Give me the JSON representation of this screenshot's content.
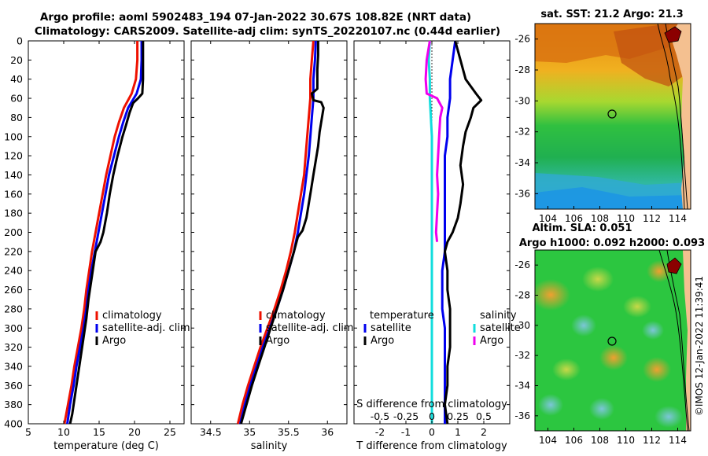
{
  "header": {
    "title_line1": "Argo profile: aoml 5902483_194 07-Jan-2022 30.67S 108.82E (NRT data)",
    "title_line2": "Climatology: CARS2009. Satellite-adj clim: synTS_20220107.nc (0.44d earlier)"
  },
  "footer": {
    "stamp": "©IMOS 12-Jan-2022 11:39:41"
  },
  "colors": {
    "climatology": "#ee1100",
    "satellite": "#0000ee",
    "argo": "#000000",
    "sal_satellite": "#11dddd",
    "sal_argo": "#ee00ee"
  },
  "chart_data": [
    {
      "id": "temperature",
      "type": "line",
      "xlabel": "temperature (deg C)",
      "ylabel": "",
      "xlim": [
        5,
        27
      ],
      "ylim": [
        400,
        0
      ],
      "xticks": [
        "5",
        "10",
        "15",
        "20",
        "25"
      ],
      "yticks": [
        "0",
        "20",
        "40",
        "60",
        "80",
        "100",
        "120",
        "140",
        "160",
        "180",
        "200",
        "220",
        "240",
        "260",
        "280",
        "300",
        "320",
        "340",
        "360",
        "380",
        "400"
      ],
      "legend": [
        "climatology",
        "satellite-adj. clim",
        "Argo"
      ],
      "series": [
        {
          "name": "climatology",
          "color": "#ee1100",
          "points": [
            [
              20.4,
              0
            ],
            [
              20.4,
              20
            ],
            [
              20.2,
              40
            ],
            [
              19.6,
              55
            ],
            [
              18.5,
              70
            ],
            [
              17.8,
              85
            ],
            [
              17.2,
              100
            ],
            [
              16.6,
              120
            ],
            [
              16.0,
              140
            ],
            [
              15.5,
              160
            ],
            [
              15.0,
              180
            ],
            [
              14.5,
              200
            ],
            [
              14.0,
              220
            ],
            [
              13.6,
              240
            ],
            [
              13.2,
              260
            ],
            [
              12.9,
              280
            ],
            [
              12.5,
              300
            ],
            [
              12.0,
              320
            ],
            [
              11.5,
              340
            ],
            [
              11.1,
              360
            ],
            [
              10.6,
              380
            ],
            [
              10.1,
              400
            ]
          ]
        },
        {
          "name": "satellite-adj. clim",
          "color": "#0000ee",
          "points": [
            [
              21.0,
              0
            ],
            [
              21.0,
              20
            ],
            [
              20.9,
              40
            ],
            [
              20.3,
              55
            ],
            [
              19.1,
              70
            ],
            [
              18.4,
              85
            ],
            [
              17.8,
              100
            ],
            [
              17.1,
              120
            ],
            [
              16.4,
              140
            ],
            [
              15.9,
              160
            ],
            [
              15.4,
              180
            ],
            [
              14.9,
              200
            ],
            [
              14.4,
              220
            ],
            [
              13.9,
              240
            ],
            [
              13.5,
              260
            ],
            [
              13.2,
              280
            ],
            [
              12.8,
              300
            ],
            [
              12.3,
              320
            ],
            [
              11.8,
              340
            ],
            [
              11.4,
              360
            ],
            [
              10.9,
              380
            ],
            [
              10.5,
              400
            ]
          ]
        },
        {
          "name": "Argo",
          "color": "#000000",
          "points": [
            [
              21.2,
              0
            ],
            [
              21.2,
              20
            ],
            [
              21.2,
              40
            ],
            [
              21.1,
              55
            ],
            [
              20.5,
              60
            ],
            [
              19.8,
              65
            ],
            [
              19.3,
              75
            ],
            [
              18.8,
              88
            ],
            [
              18.3,
              100
            ],
            [
              17.6,
              120
            ],
            [
              17.0,
              140
            ],
            [
              16.5,
              160
            ],
            [
              16.1,
              180
            ],
            [
              15.6,
              200
            ],
            [
              15.2,
              210
            ],
            [
              14.5,
              220
            ],
            [
              14.2,
              235
            ],
            [
              13.9,
              250
            ],
            [
              13.5,
              270
            ],
            [
              13.2,
              290
            ],
            [
              12.8,
              310
            ],
            [
              12.4,
              330
            ],
            [
              12.0,
              350
            ],
            [
              11.6,
              370
            ],
            [
              11.2,
              390
            ],
            [
              10.9,
              400
            ]
          ]
        }
      ]
    },
    {
      "id": "salinity",
      "type": "line",
      "xlabel": "salinity",
      "xlim": [
        34.25,
        36.25
      ],
      "ylim": [
        400,
        0
      ],
      "xticks": [
        "34.5",
        "35",
        "35.5",
        "36"
      ],
      "legend": [
        "climatology",
        "satellite-adj. clim",
        "Argo"
      ],
      "series": [
        {
          "name": "climatology",
          "color": "#ee1100",
          "points": [
            [
              35.82,
              0
            ],
            [
              35.8,
              20
            ],
            [
              35.78,
              40
            ],
            [
              35.78,
              60
            ],
            [
              35.76,
              80
            ],
            [
              35.74,
              100
            ],
            [
              35.72,
              120
            ],
            [
              35.7,
              140
            ],
            [
              35.66,
              160
            ],
            [
              35.62,
              180
            ],
            [
              35.58,
              200
            ],
            [
              35.53,
              220
            ],
            [
              35.47,
              240
            ],
            [
              35.4,
              260
            ],
            [
              35.32,
              280
            ],
            [
              35.23,
              300
            ],
            [
              35.14,
              320
            ],
            [
              35.06,
              340
            ],
            [
              34.98,
              360
            ],
            [
              34.91,
              380
            ],
            [
              34.85,
              400
            ]
          ]
        },
        {
          "name": "satellite-adj. clim",
          "color": "#0000ee",
          "points": [
            [
              35.85,
              0
            ],
            [
              35.84,
              20
            ],
            [
              35.82,
              40
            ],
            [
              35.82,
              60
            ],
            [
              35.8,
              80
            ],
            [
              35.78,
              100
            ],
            [
              35.76,
              120
            ],
            [
              35.73,
              140
            ],
            [
              35.7,
              160
            ],
            [
              35.66,
              180
            ],
            [
              35.62,
              200
            ],
            [
              35.57,
              220
            ],
            [
              35.5,
              240
            ],
            [
              35.43,
              260
            ],
            [
              35.35,
              280
            ],
            [
              35.26,
              300
            ],
            [
              35.17,
              320
            ],
            [
              35.09,
              340
            ],
            [
              35.01,
              360
            ],
            [
              34.94,
              380
            ],
            [
              34.88,
              400
            ]
          ]
        },
        {
          "name": "Argo",
          "color": "#000000",
          "points": [
            [
              35.88,
              0
            ],
            [
              35.88,
              15
            ],
            [
              35.87,
              30
            ],
            [
              35.87,
              50
            ],
            [
              35.8,
              55
            ],
            [
              35.82,
              62
            ],
            [
              35.92,
              64
            ],
            [
              35.95,
              70
            ],
            [
              35.93,
              80
            ],
            [
              35.9,
              95
            ],
            [
              35.88,
              110
            ],
            [
              35.85,
              125
            ],
            [
              35.82,
              140
            ],
            [
              35.79,
              155
            ],
            [
              35.76,
              170
            ],
            [
              35.73,
              185
            ],
            [
              35.68,
              198
            ],
            [
              35.62,
              205
            ],
            [
              35.57,
              220
            ],
            [
              35.5,
              240
            ],
            [
              35.43,
              260
            ],
            [
              35.35,
              280
            ],
            [
              35.27,
              300
            ],
            [
              35.19,
              320
            ],
            [
              35.11,
              340
            ],
            [
              35.03,
              360
            ],
            [
              34.96,
              380
            ],
            [
              34.89,
              400
            ]
          ]
        }
      ]
    },
    {
      "id": "difference",
      "type": "line",
      "xlabel": "T difference from climatology",
      "xlabel_top": "S difference from climatology",
      "xlim": [
        -3,
        3
      ],
      "xlim_salinity": [
        -0.75,
        0.75
      ],
      "ylim": [
        400,
        0
      ],
      "xticks": [
        "-2",
        "-1",
        "0",
        "1",
        "2"
      ],
      "xticks_salinity": [
        "-0.5",
        "-0.25",
        "0",
        "0.25",
        "0.5"
      ],
      "legend_temperature": {
        "title": "temperature",
        "items": [
          "satellite",
          "Argo"
        ]
      },
      "legend_salinity": {
        "title": "salinity",
        "items": [
          "satellite",
          "Argo"
        ]
      },
      "series": [
        {
          "name": "T satellite",
          "color": "#0000ee",
          "points": [
            [
              0.9,
              0
            ],
            [
              0.8,
              20
            ],
            [
              0.7,
              40
            ],
            [
              0.7,
              60
            ],
            [
              0.6,
              80
            ],
            [
              0.6,
              100
            ],
            [
              0.5,
              120
            ],
            [
              0.5,
              140
            ],
            [
              0.5,
              160
            ],
            [
              0.5,
              180
            ],
            [
              0.5,
              200
            ],
            [
              0.5,
              220
            ],
            [
              0.4,
              240
            ],
            [
              0.4,
              260
            ],
            [
              0.4,
              280
            ],
            [
              0.5,
              300
            ],
            [
              0.5,
              320
            ],
            [
              0.5,
              340
            ],
            [
              0.5,
              360
            ],
            [
              0.5,
              380
            ],
            [
              0.5,
              400
            ]
          ]
        },
        {
          "name": "T Argo",
          "color": "#000000",
          "points": [
            [
              0.9,
              0
            ],
            [
              1.1,
              20
            ],
            [
              1.3,
              40
            ],
            [
              1.7,
              55
            ],
            [
              1.9,
              62
            ],
            [
              1.6,
              70
            ],
            [
              1.5,
              80
            ],
            [
              1.3,
              95
            ],
            [
              1.2,
              110
            ],
            [
              1.1,
              130
            ],
            [
              1.2,
              150
            ],
            [
              1.1,
              170
            ],
            [
              1.0,
              185
            ],
            [
              0.8,
              200
            ],
            [
              0.6,
              210
            ],
            [
              0.5,
              220
            ],
            [
              0.6,
              240
            ],
            [
              0.6,
              260
            ],
            [
              0.7,
              280
            ],
            [
              0.7,
              300
            ],
            [
              0.7,
              320
            ],
            [
              0.6,
              340
            ],
            [
              0.6,
              360
            ],
            [
              0.5,
              380
            ],
            [
              0.6,
              400
            ]
          ]
        },
        {
          "name": "S satellite",
          "color": "#11dddd",
          "points": [
            [
              -0.02,
              0
            ],
            [
              -0.03,
              20
            ],
            [
              -0.02,
              40
            ],
            [
              -0.02,
              60
            ],
            [
              -0.01,
              80
            ],
            [
              0.0,
              100
            ],
            [
              0.0,
              140
            ],
            [
              0.0,
              200
            ],
            [
              0.0,
              300
            ],
            [
              0.0,
              400
            ]
          ]
        },
        {
          "name": "S Argo",
          "color": "#ee00ee",
          "points": [
            [
              -0.02,
              0
            ],
            [
              -0.05,
              20
            ],
            [
              -0.06,
              40
            ],
            [
              -0.05,
              55
            ],
            [
              0.05,
              60
            ],
            [
              0.1,
              70
            ],
            [
              0.08,
              80
            ],
            [
              0.07,
              100
            ],
            [
              0.06,
              120
            ],
            [
              0.05,
              140
            ],
            [
              0.06,
              160
            ],
            [
              0.05,
              180
            ],
            [
              0.04,
              200
            ],
            [
              0.05,
              210
            ]
          ]
        }
      ]
    },
    {
      "id": "sst_map",
      "type": "heatmap",
      "title": "sat. SST: 21.2 Argo: 21.3",
      "xticks": [
        "104",
        "106",
        "108",
        "110",
        "112",
        "114"
      ],
      "yticks": [
        "-26",
        "-28",
        "-30",
        "-32",
        "-34",
        "-36"
      ],
      "xlim": [
        103,
        115
      ],
      "ylim": [
        -37,
        -25
      ],
      "argo_position": [
        108.82,
        -30.67
      ]
    },
    {
      "id": "sla_map",
      "type": "heatmap",
      "title_line1": "Altim. SLA: 0.051",
      "title_line2": "Argo h1000: 0.092 h2000: 0.093",
      "xticks": [
        "104",
        "106",
        "108",
        "110",
        "112",
        "114"
      ],
      "yticks": [
        "-26",
        "-28",
        "-30",
        "-32",
        "-34",
        "-36"
      ],
      "xlim": [
        103,
        115
      ],
      "ylim": [
        -37,
        -25
      ],
      "argo_position": [
        108.82,
        -30.67
      ]
    }
  ]
}
